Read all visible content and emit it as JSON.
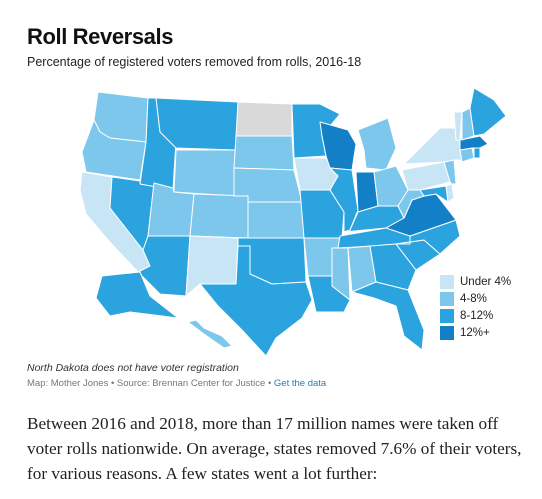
{
  "title": "Roll Reversals",
  "subtitle": "Percentage of registered voters removed from rolls, 2016-18",
  "colors": {
    "under_4": "#c8e5f6",
    "4_8": "#7dc6ec",
    "8_12": "#2aa3df",
    "12_plus": "#137fc6",
    "no_data": "#d9d9d9",
    "border": "#ffffff",
    "link": "#1a7fc1"
  },
  "legend": {
    "items": [
      {
        "label": "Under 4%",
        "color": "#c8e5f6"
      },
      {
        "label": "4-8%",
        "color": "#7dc6ec"
      },
      {
        "label": "8-12%",
        "color": "#2aa3df"
      },
      {
        "label": "12%+",
        "color": "#137fc6"
      }
    ]
  },
  "note": "North Dakota does not have voter registration",
  "source": {
    "text": "Map: Mother Jones • Source: Brennan Center for Justice • ",
    "link_label": "Get the data"
  },
  "body": {
    "lines": [
      "Between 2016 and 2018, more than 17 million names were taken off",
      "voter rolls nationwide. On average, states removed 7.6% of their voters,",
      "for various reasons. A few states went a lot further:"
    ]
  },
  "states": {
    "WA": "4_8",
    "OR": "4_8",
    "CA": "under_4",
    "NV": "8_12",
    "ID": "8_12",
    "MT": "8_12",
    "WY": "4_8",
    "UT": "4_8",
    "AZ": "8_12",
    "CO": "4_8",
    "NM": "under_4",
    "ND": "no_data",
    "SD": "4_8",
    "NE": "4_8",
    "KS": "4_8",
    "OK": "8_12",
    "TX": "8_12",
    "MN": "8_12",
    "IA": "under_4",
    "MO": "8_12",
    "AR": "4_8",
    "LA": "8_12",
    "WI": "12_plus",
    "IL": "8_12",
    "MI": "4_8",
    "IN": "12_plus",
    "OH": "4_8",
    "KY": "8_12",
    "TN": "8_12",
    "MS": "4_8",
    "AL": "4_8",
    "GA": "8_12",
    "FL": "8_12",
    "SC": "8_12",
    "NC": "8_12",
    "VA": "12_plus",
    "WV": "4_8",
    "MD": "8_12",
    "DE": "under_4",
    "PA": "under_4",
    "NJ": "4_8",
    "NY": "under_4",
    "CT": "4_8",
    "RI": "8_12",
    "MA": "12_plus",
    "VT": "under_4",
    "NH": "4_8",
    "ME": "8_12",
    "AK": "8_12",
    "HI": "4_8"
  }
}
